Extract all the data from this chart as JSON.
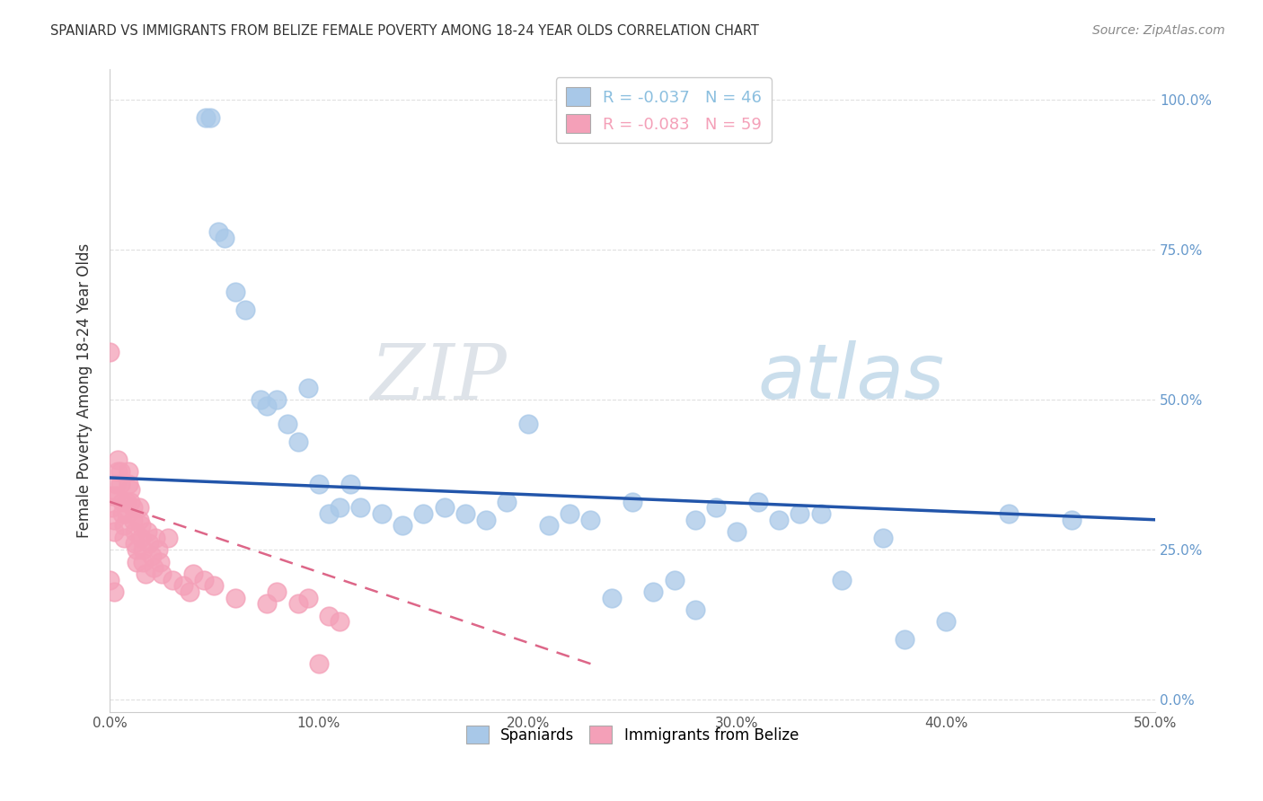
{
  "title": "SPANIARD VS IMMIGRANTS FROM BELIZE FEMALE POVERTY AMONG 18-24 YEAR OLDS CORRELATION CHART",
  "source": "Source: ZipAtlas.com",
  "ylabel": "Female Poverty Among 18-24 Year Olds",
  "xlim": [
    0.0,
    0.5
  ],
  "ylim": [
    -0.02,
    1.05
  ],
  "xticks": [
    0.0,
    0.1,
    0.2,
    0.3,
    0.4,
    0.5
  ],
  "yticks": [
    0.0,
    0.25,
    0.5,
    0.75,
    1.0
  ],
  "xticklabels": [
    "0.0%",
    "10.0%",
    "20.0%",
    "30.0%",
    "40.0%",
    "50.0%"
  ],
  "yticklabels_right": [
    "0.0%",
    "25.0%",
    "50.0%",
    "75.0%",
    "100.0%"
  ],
  "legend_entries": [
    {
      "label": "R = -0.037   N = 46",
      "color": "#8bbfdf"
    },
    {
      "label": "R = -0.083   N = 59",
      "color": "#f4a0b8"
    }
  ],
  "legend_bottom": [
    "Spaniards",
    "Immigrants from Belize"
  ],
  "watermark_zip": "ZIP",
  "watermark_atlas": "atlas",
  "blue_color": "#a8c8e8",
  "pink_color": "#f4a0b8",
  "blue_line_color": "#2255aa",
  "pink_line_color": "#dd6688",
  "background_color": "#ffffff",
  "grid_color": "#cccccc",
  "spaniards_x": [
    0.046,
    0.048,
    0.052,
    0.055,
    0.06,
    0.065,
    0.072,
    0.075,
    0.08,
    0.085,
    0.09,
    0.095,
    0.1,
    0.105,
    0.11,
    0.115,
    0.12,
    0.13,
    0.14,
    0.15,
    0.16,
    0.17,
    0.18,
    0.19,
    0.2,
    0.21,
    0.22,
    0.23,
    0.24,
    0.25,
    0.26,
    0.27,
    0.28,
    0.29,
    0.3,
    0.31,
    0.32,
    0.33,
    0.34,
    0.35,
    0.37,
    0.4,
    0.43,
    0.46,
    0.28,
    0.38
  ],
  "spaniards_y": [
    0.97,
    0.97,
    0.78,
    0.77,
    0.68,
    0.65,
    0.5,
    0.49,
    0.5,
    0.46,
    0.43,
    0.52,
    0.36,
    0.31,
    0.32,
    0.36,
    0.32,
    0.31,
    0.29,
    0.31,
    0.32,
    0.31,
    0.3,
    0.33,
    0.46,
    0.29,
    0.31,
    0.3,
    0.17,
    0.33,
    0.18,
    0.2,
    0.3,
    0.32,
    0.28,
    0.33,
    0.3,
    0.31,
    0.31,
    0.2,
    0.27,
    0.13,
    0.31,
    0.3,
    0.15,
    0.1
  ],
  "belize_x": [
    0.0,
    0.001,
    0.001,
    0.002,
    0.002,
    0.003,
    0.003,
    0.004,
    0.004,
    0.005,
    0.005,
    0.006,
    0.006,
    0.007,
    0.007,
    0.008,
    0.008,
    0.009,
    0.009,
    0.01,
    0.01,
    0.011,
    0.011,
    0.012,
    0.012,
    0.013,
    0.013,
    0.014,
    0.014,
    0.015,
    0.015,
    0.016,
    0.016,
    0.017,
    0.018,
    0.019,
    0.02,
    0.021,
    0.022,
    0.023,
    0.024,
    0.025,
    0.028,
    0.03,
    0.035,
    0.038,
    0.04,
    0.045,
    0.05,
    0.06,
    0.075,
    0.08,
    0.095,
    0.1,
    0.105,
    0.11,
    0.0,
    0.002,
    0.09
  ],
  "belize_y": [
    0.58,
    0.34,
    0.32,
    0.3,
    0.28,
    0.36,
    0.34,
    0.4,
    0.38,
    0.38,
    0.36,
    0.33,
    0.31,
    0.29,
    0.27,
    0.33,
    0.31,
    0.38,
    0.36,
    0.35,
    0.33,
    0.32,
    0.3,
    0.28,
    0.26,
    0.25,
    0.23,
    0.32,
    0.3,
    0.29,
    0.27,
    0.25,
    0.23,
    0.21,
    0.28,
    0.26,
    0.24,
    0.22,
    0.27,
    0.25,
    0.23,
    0.21,
    0.27,
    0.2,
    0.19,
    0.18,
    0.21,
    0.2,
    0.19,
    0.17,
    0.16,
    0.18,
    0.17,
    0.06,
    0.14,
    0.13,
    0.2,
    0.18,
    0.16
  ],
  "blue_trend_x0": 0.0,
  "blue_trend_y0": 0.37,
  "blue_trend_x1": 0.5,
  "blue_trend_y1": 0.3,
  "pink_trend_x0": 0.0,
  "pink_trend_y0": 0.33,
  "pink_trend_x1": 0.23,
  "pink_trend_y1": 0.06
}
